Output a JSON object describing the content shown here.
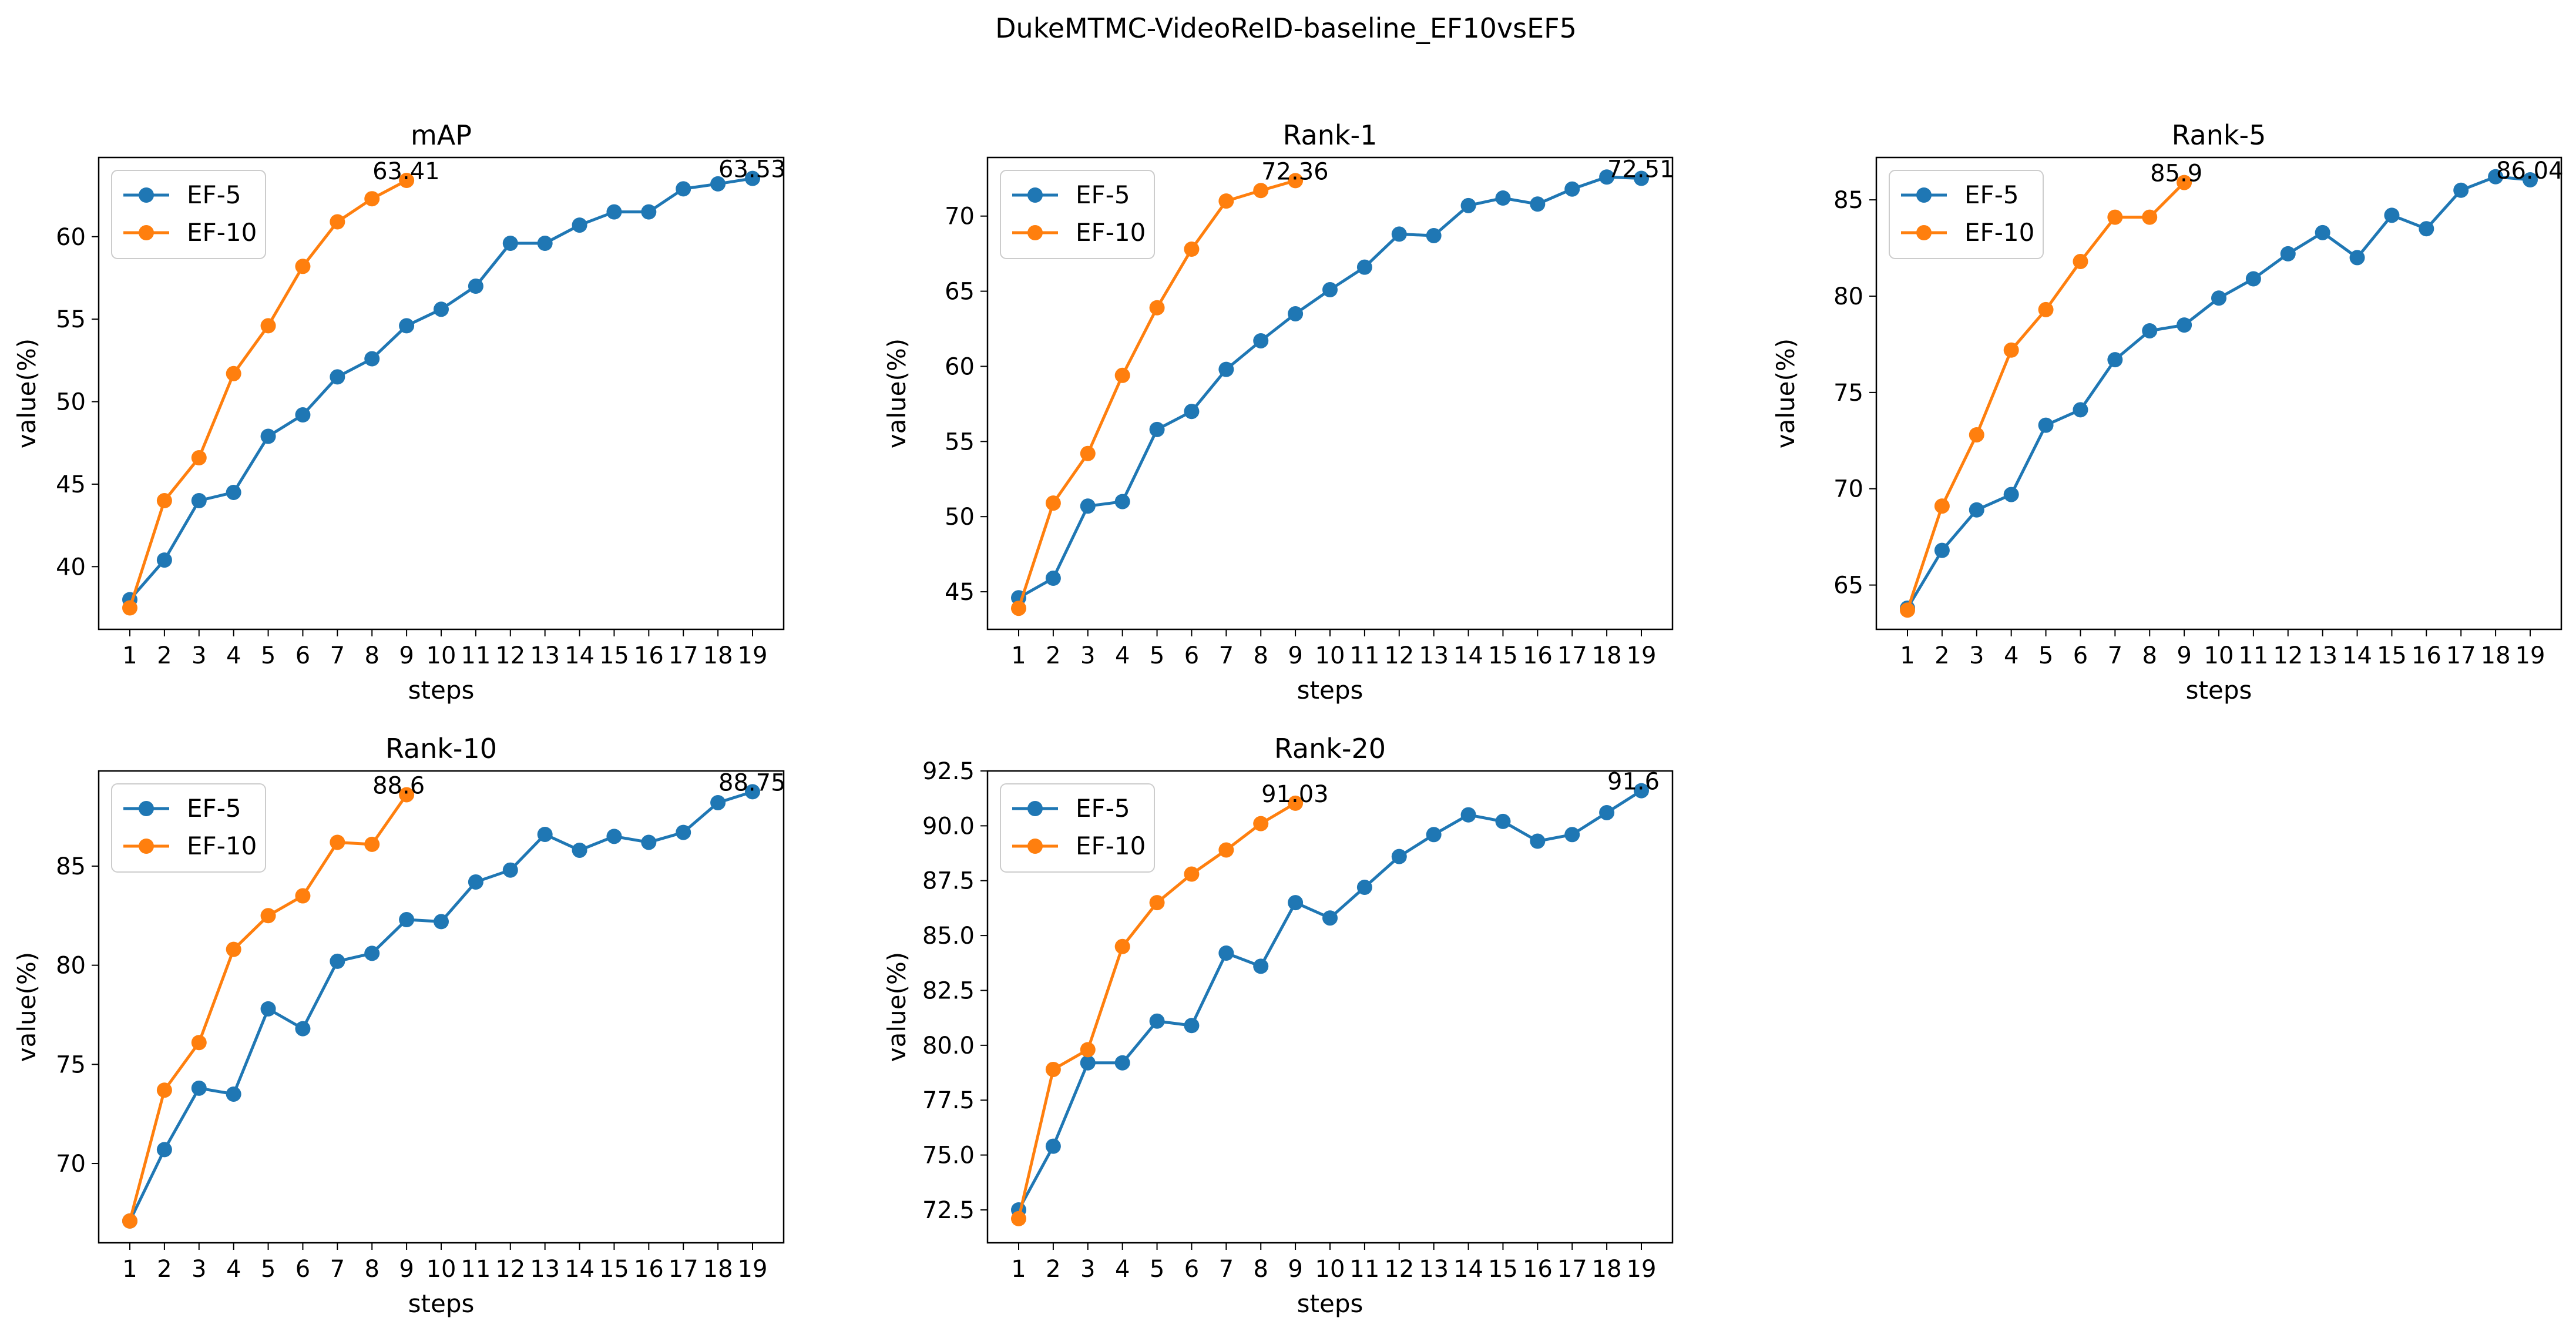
{
  "figure": {
    "suptitle": "DukeMTMC-VideoReID-baseline_EF10vsEF5"
  },
  "colors": {
    "ef5": "#1f77b4",
    "ef10": "#ff7f0e",
    "axis": "#000000",
    "background": "#ffffff"
  },
  "chart_data": [
    {
      "type": "line",
      "title": "mAP",
      "xlabel": "steps",
      "ylabel": "value(%)",
      "x": [
        1,
        2,
        3,
        4,
        5,
        6,
        7,
        8,
        9,
        10,
        11,
        12,
        13,
        14,
        15,
        16,
        17,
        18,
        19
      ],
      "xlim": [
        0.1,
        19.9
      ],
      "ylim": [
        36.2,
        64.8
      ],
      "yticks": [
        40,
        45,
        50,
        55,
        60
      ],
      "grid": false,
      "legend": "top-left",
      "series": [
        {
          "name": "EF-5",
          "color": "#1f77b4",
          "x": [
            1,
            2,
            3,
            4,
            5,
            6,
            7,
            8,
            9,
            10,
            11,
            12,
            13,
            14,
            15,
            16,
            17,
            18,
            19
          ],
          "values": [
            38.0,
            40.4,
            44.0,
            44.5,
            47.9,
            49.2,
            51.5,
            52.6,
            54.6,
            55.6,
            57.0,
            59.6,
            59.6,
            60.7,
            61.5,
            61.5,
            62.9,
            63.2,
            63.53
          ]
        },
        {
          "name": "EF-10",
          "color": "#ff7f0e",
          "x": [
            1,
            2,
            3,
            4,
            5,
            6,
            7,
            8,
            9
          ],
          "values": [
            37.5,
            44.0,
            46.6,
            51.7,
            54.6,
            58.2,
            60.9,
            62.3,
            63.41
          ]
        }
      ],
      "annotations": [
        {
          "text": "63.41",
          "x": 9,
          "y": 63.41
        },
        {
          "text": "63.53",
          "x": 19,
          "y": 63.53
        }
      ]
    },
    {
      "type": "line",
      "title": "Rank-1",
      "xlabel": "steps",
      "ylabel": "value(%)",
      "x": [
        1,
        2,
        3,
        4,
        5,
        6,
        7,
        8,
        9,
        10,
        11,
        12,
        13,
        14,
        15,
        16,
        17,
        18,
        19
      ],
      "xlim": [
        0.1,
        19.9
      ],
      "ylim": [
        42.5,
        73.9
      ],
      "yticks": [
        45,
        50,
        55,
        60,
        65,
        70
      ],
      "grid": false,
      "legend": "top-left",
      "series": [
        {
          "name": "EF-5",
          "color": "#1f77b4",
          "x": [
            1,
            2,
            3,
            4,
            5,
            6,
            7,
            8,
            9,
            10,
            11,
            12,
            13,
            14,
            15,
            16,
            17,
            18,
            19
          ],
          "values": [
            44.6,
            45.9,
            50.7,
            51.0,
            55.8,
            57.0,
            59.8,
            61.7,
            63.5,
            65.1,
            66.6,
            68.8,
            68.7,
            70.7,
            71.2,
            70.8,
            71.8,
            72.6,
            72.51
          ]
        },
        {
          "name": "EF-10",
          "color": "#ff7f0e",
          "x": [
            1,
            2,
            3,
            4,
            5,
            6,
            7,
            8,
            9
          ],
          "values": [
            43.9,
            50.9,
            54.2,
            59.4,
            63.9,
            67.8,
            71.0,
            71.7,
            72.36
          ]
        }
      ],
      "annotations": [
        {
          "text": "72.36",
          "x": 9,
          "y": 72.36
        },
        {
          "text": "72.51",
          "x": 19,
          "y": 72.51
        }
      ]
    },
    {
      "type": "line",
      "title": "Rank-5",
      "xlabel": "steps",
      "ylabel": "value(%)",
      "x": [
        1,
        2,
        3,
        4,
        5,
        6,
        7,
        8,
        9,
        10,
        11,
        12,
        13,
        14,
        15,
        16,
        17,
        18,
        19
      ],
      "xlim": [
        0.1,
        19.9
      ],
      "ylim": [
        62.7,
        87.2
      ],
      "yticks": [
        65,
        70,
        75,
        80,
        85
      ],
      "grid": false,
      "legend": "top-left",
      "series": [
        {
          "name": "EF-5",
          "color": "#1f77b4",
          "x": [
            1,
            2,
            3,
            4,
            5,
            6,
            7,
            8,
            9,
            10,
            11,
            12,
            13,
            14,
            15,
            16,
            17,
            18,
            19
          ],
          "values": [
            63.8,
            66.8,
            68.9,
            69.7,
            73.3,
            74.1,
            76.7,
            78.2,
            78.5,
            79.9,
            80.9,
            82.2,
            83.3,
            82.0,
            84.2,
            83.5,
            85.5,
            86.2,
            86.04
          ]
        },
        {
          "name": "EF-10",
          "color": "#ff7f0e",
          "x": [
            1,
            2,
            3,
            4,
            5,
            6,
            7,
            8,
            9
          ],
          "values": [
            63.7,
            69.1,
            72.8,
            77.2,
            79.3,
            81.8,
            84.1,
            84.1,
            85.9
          ]
        }
      ],
      "annotations": [
        {
          "text": "85.9",
          "x": 9,
          "y": 85.9
        },
        {
          "text": "86.04",
          "x": 19,
          "y": 86.04
        }
      ]
    },
    {
      "type": "line",
      "title": "Rank-10",
      "xlabel": "steps",
      "ylabel": "value(%)",
      "x": [
        1,
        2,
        3,
        4,
        5,
        6,
        7,
        8,
        9,
        10,
        11,
        12,
        13,
        14,
        15,
        16,
        17,
        18,
        19
      ],
      "xlim": [
        0.1,
        19.9
      ],
      "ylim": [
        66.0,
        89.8
      ],
      "yticks": [
        70,
        75,
        80,
        85
      ],
      "grid": false,
      "legend": "top-left",
      "series": [
        {
          "name": "EF-5",
          "color": "#1f77b4",
          "x": [
            1,
            2,
            3,
            4,
            5,
            6,
            7,
            8,
            9,
            10,
            11,
            12,
            13,
            14,
            15,
            16,
            17,
            18,
            19
          ],
          "values": [
            67.1,
            70.7,
            73.8,
            73.5,
            77.8,
            76.8,
            80.2,
            80.6,
            82.3,
            82.2,
            84.2,
            84.8,
            86.6,
            85.8,
            86.5,
            86.2,
            86.7,
            88.2,
            88.75
          ]
        },
        {
          "name": "EF-10",
          "color": "#ff7f0e",
          "x": [
            1,
            2,
            3,
            4,
            5,
            6,
            7,
            8,
            9
          ],
          "values": [
            67.1,
            73.7,
            76.1,
            80.8,
            82.5,
            83.5,
            86.2,
            86.1,
            88.6
          ]
        }
      ],
      "annotations": [
        {
          "text": "88.6",
          "x": 9,
          "y": 88.6
        },
        {
          "text": "88.75",
          "x": 19,
          "y": 88.75
        }
      ]
    },
    {
      "type": "line",
      "title": "Rank-20",
      "xlabel": "steps",
      "ylabel": "value(%)",
      "x": [
        1,
        2,
        3,
        4,
        5,
        6,
        7,
        8,
        9,
        10,
        11,
        12,
        13,
        14,
        15,
        16,
        17,
        18,
        19
      ],
      "xlim": [
        0.1,
        19.9
      ],
      "ylim": [
        71.0,
        92.5
      ],
      "yticks": [
        72.5,
        75.0,
        77.5,
        80.0,
        82.5,
        85.0,
        87.5,
        90.0,
        92.5
      ],
      "grid": false,
      "legend": "top-left",
      "series": [
        {
          "name": "EF-5",
          "color": "#1f77b4",
          "x": [
            1,
            2,
            3,
            4,
            5,
            6,
            7,
            8,
            9,
            10,
            11,
            12,
            13,
            14,
            15,
            16,
            17,
            18,
            19
          ],
          "values": [
            72.5,
            75.4,
            79.2,
            79.2,
            81.1,
            80.9,
            84.2,
            83.6,
            86.5,
            85.8,
            87.2,
            88.6,
            89.6,
            90.5,
            90.2,
            89.3,
            89.6,
            90.6,
            91.6
          ]
        },
        {
          "name": "EF-10",
          "color": "#ff7f0e",
          "x": [
            1,
            2,
            3,
            4,
            5,
            6,
            7,
            8,
            9
          ],
          "values": [
            72.1,
            78.9,
            79.8,
            84.5,
            86.5,
            87.8,
            88.9,
            90.1,
            91.03
          ]
        }
      ],
      "annotations": [
        {
          "text": "91.03",
          "x": 9,
          "y": 91.03
        },
        {
          "text": "91.6",
          "x": 19,
          "y": 91.6
        }
      ]
    }
  ]
}
